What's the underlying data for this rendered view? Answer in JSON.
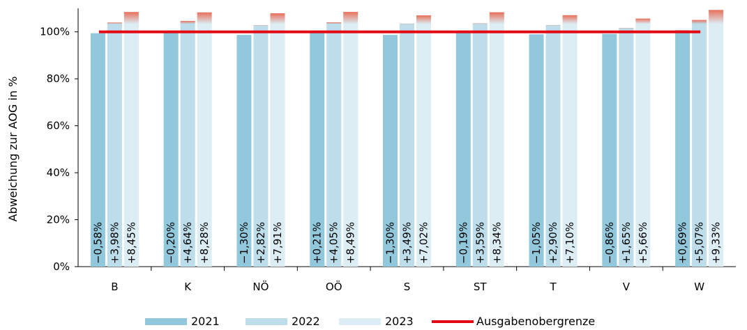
{
  "chart_data": {
    "type": "bar",
    "title": "",
    "xlabel": "",
    "ylabel": "Abweichung zur AOG in %",
    "ylim": [
      0,
      110
    ],
    "yticks": [
      "0%",
      "20%",
      "40%",
      "60%",
      "80%",
      "100%"
    ],
    "grid": false,
    "legend_position": "bottom",
    "categories": [
      "B",
      "K",
      "NÖ",
      "OÖ",
      "S",
      "ST",
      "T",
      "V",
      "W"
    ],
    "series": [
      {
        "name": "2021",
        "color": "#92c8dc",
        "values": [
          99.42,
          99.8,
          98.7,
          100.21,
          98.7,
          99.81,
          98.95,
          99.14,
          100.69
        ],
        "labels": [
          "−0,58%",
          "−0,20%",
          "−1,30%",
          "+0,21%",
          "−1,30%",
          "−0,19%",
          "−1,05%",
          "−0,86%",
          "+0,69%"
        ]
      },
      {
        "name": "2022",
        "color": "#bcdde9",
        "values": [
          103.98,
          104.64,
          102.82,
          104.05,
          103.49,
          103.59,
          102.9,
          101.65,
          105.07
        ],
        "labels": [
          "+3,98%",
          "+4,64%",
          "+2,82%",
          "+4,05%",
          "+3,49%",
          "+3,59%",
          "+2,90%",
          "+1,65%",
          "+5,07%"
        ]
      },
      {
        "name": "2023",
        "color": "#dcedf4",
        "values": [
          108.45,
          108.28,
          107.91,
          108.49,
          107.02,
          108.34,
          107.1,
          105.66,
          109.33
        ],
        "labels": [
          "+8,45%",
          "+8,28%",
          "+7,91%",
          "+8,49%",
          "+7,02%",
          "+8,34%",
          "+7,10%",
          "+5,66%",
          "+9,33%"
        ]
      }
    ],
    "reference_line": {
      "name": "Ausgabenobergrenze",
      "value": 100,
      "color": "#e30613"
    },
    "overshoot_color": "#e8705a"
  }
}
